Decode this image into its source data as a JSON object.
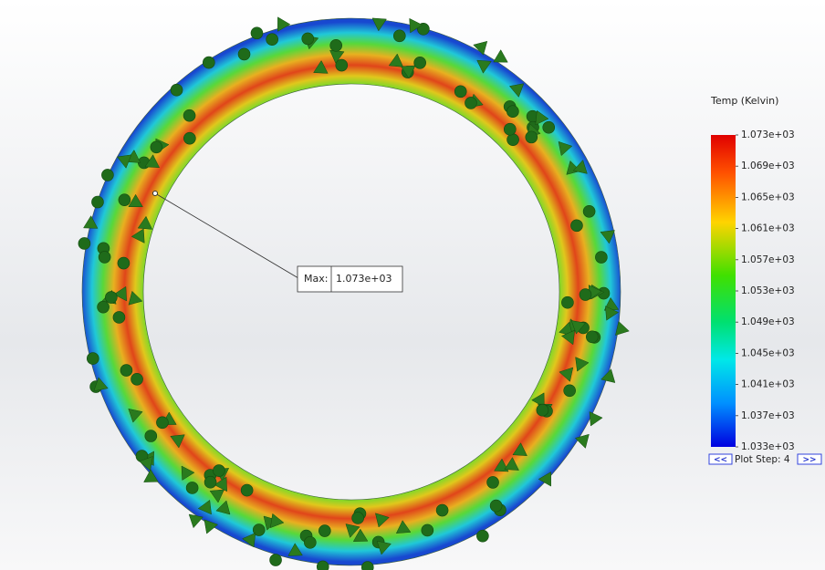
{
  "legend": {
    "title": "Temp (Kelvin)",
    "labels": [
      "1.073e+03",
      "1.069e+03",
      "1.065e+03",
      "1.061e+03",
      "1.057e+03",
      "1.053e+03",
      "1.049e+03",
      "1.045e+03",
      "1.041e+03",
      "1.037e+03",
      "1.033e+03"
    ]
  },
  "probe": {
    "label": "Max:",
    "value": "1.073e+03"
  },
  "plot_step": {
    "previous": "<<",
    "label": "Plot Step: 4",
    "next": ">>"
  }
}
